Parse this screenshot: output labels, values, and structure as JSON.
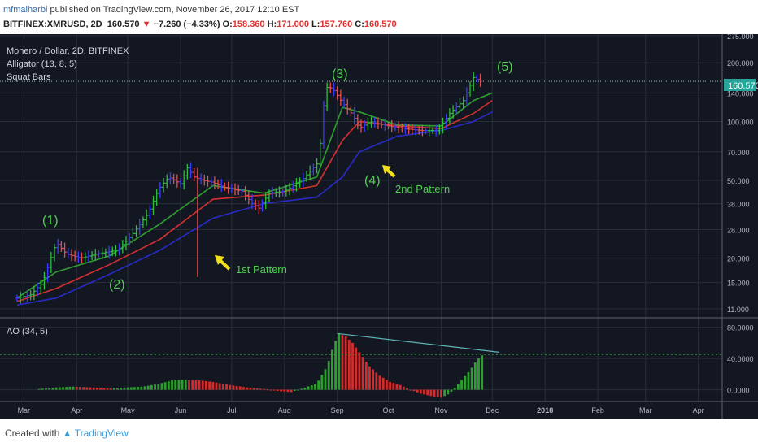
{
  "header": {
    "user": "mfmalharbi",
    "published": " published on TradingView.com, November 26, 2017 12:10 EST",
    "symbol": "BITFINEX:XMRUSD, 2D",
    "last": "160.570",
    "arrow": "▼",
    "change": "−7.260 (−4.33%)",
    "o_label": "O:",
    "o_value": "158.360",
    "h_label": "H:",
    "h_value": "171.000",
    "l_label": "L:",
    "l_value": "157.760",
    "c_label": "C:",
    "c_value": "160.570"
  },
  "legend": {
    "title": "Monero / Dollar, 2D, BITFINEX",
    "alligator": "Alligator (13, 8, 5)",
    "squat": "Squat Bars",
    "ao": "AO (34, 5)"
  },
  "annotations": {
    "w1": "(1)",
    "w2": "(2)",
    "w3": "(3)",
    "w4": "(4)",
    "w5": "(5)",
    "pattern1": "1st Pattern",
    "pattern2": "2nd Pattern"
  },
  "price_tag": "160.570",
  "footer": {
    "created": "Created with",
    "brand": "TradingView"
  },
  "colors": {
    "bg": "#131722",
    "grid": "#2a2e39",
    "up": "#26a69a",
    "down": "#ef5350",
    "jaw": "#2a2ac8",
    "teeth": "#d43030",
    "lips": "#2e9e2e",
    "annotation": "#4cd24c",
    "arrow": "#f3e21a"
  },
  "chart_data": [
    {
      "type": "candlestick",
      "title": "Monero / Dollar, 2D, BITFINEX",
      "y_scale": "log",
      "y_ticks": [
        "275.000",
        "200.000",
        "140.000",
        "100.000",
        "70.000",
        "50.000",
        "38.000",
        "28.000",
        "20.000",
        "15.000",
        "11.000"
      ],
      "x_ticks": [
        "Mar",
        "Apr",
        "May",
        "Jun",
        "Jul",
        "Aug",
        "Sep",
        "Oct",
        "Nov",
        "Dec",
        "2018",
        "Feb",
        "Mar",
        "Apr"
      ],
      "price_points": [
        [
          "2017-02-25",
          12.5
        ],
        [
          "2017-03-05",
          13
        ],
        [
          "2017-03-12",
          15
        ],
        [
          "2017-03-16",
          19
        ],
        [
          "2017-03-20",
          24
        ],
        [
          "2017-03-26",
          21
        ],
        [
          "2017-04-03",
          20
        ],
        [
          "2017-04-13",
          21
        ],
        [
          "2017-04-25",
          22
        ],
        [
          "2017-05-03",
          26
        ],
        [
          "2017-05-13",
          34
        ],
        [
          "2017-05-19",
          45
        ],
        [
          "2017-05-25",
          52
        ],
        [
          "2017-06-01",
          48
        ],
        [
          "2017-06-05",
          58
        ],
        [
          "2017-06-09",
          52
        ],
        [
          "2017-06-14",
          50
        ],
        [
          "2017-06-19",
          49
        ],
        [
          "2017-06-27",
          46
        ],
        [
          "2017-07-07",
          44
        ],
        [
          "2017-07-13",
          38
        ],
        [
          "2017-07-17",
          36
        ],
        [
          "2017-07-23",
          43
        ],
        [
          "2017-08-01",
          44
        ],
        [
          "2017-08-11",
          50
        ],
        [
          "2017-08-21",
          62
        ],
        [
          "2017-08-25",
          150
        ],
        [
          "2017-08-29",
          148
        ],
        [
          "2017-09-04",
          125
        ],
        [
          "2017-09-10",
          108
        ],
        [
          "2017-09-14",
          92
        ],
        [
          "2017-09-20",
          100
        ],
        [
          "2017-09-28",
          96
        ],
        [
          "2017-10-10",
          92
        ],
        [
          "2017-10-20",
          90
        ],
        [
          "2017-10-30",
          90
        ],
        [
          "2017-11-06",
          110
        ],
        [
          "2017-11-14",
          128
        ],
        [
          "2017-11-20",
          168
        ],
        [
          "2017-11-24",
          160.57
        ]
      ],
      "series": [
        {
          "name": "Alligator Jaw",
          "points": [
            [
              "2017-02-25",
              11.5
            ],
            [
              "2017-03-20",
              12.5
            ],
            [
              "2017-04-20",
              16.5
            ],
            [
              "2017-05-20",
              22
            ],
            [
              "2017-06-20",
              32
            ],
            [
              "2017-07-20",
              38
            ],
            [
              "2017-08-20",
              41
            ],
            [
              "2017-09-04",
              52
            ],
            [
              "2017-09-14",
              70
            ],
            [
              "2017-10-06",
              84
            ],
            [
              "2017-11-01",
              90
            ],
            [
              "2017-11-20",
              100
            ],
            [
              "2017-12-01",
              112
            ]
          ]
        },
        {
          "name": "Alligator Teeth",
          "points": [
            [
              "2017-02-25",
              12
            ],
            [
              "2017-03-20",
              14
            ],
            [
              "2017-04-20",
              18.5
            ],
            [
              "2017-05-20",
              25
            ],
            [
              "2017-06-20",
              40
            ],
            [
              "2017-07-20",
              42
            ],
            [
              "2017-08-20",
              47
            ],
            [
              "2017-09-04",
              80
            ],
            [
              "2017-09-14",
              100
            ],
            [
              "2017-10-06",
              95
            ],
            [
              "2017-11-01",
              92
            ],
            [
              "2017-11-20",
              110
            ],
            [
              "2017-12-01",
              128
            ]
          ]
        },
        {
          "name": "Alligator Lips",
          "points": [
            [
              "2017-02-25",
              12.5
            ],
            [
              "2017-03-20",
              17
            ],
            [
              "2017-04-20",
              20.5
            ],
            [
              "2017-05-20",
              30
            ],
            [
              "2017-06-20",
              47
            ],
            [
              "2017-07-20",
              43
            ],
            [
              "2017-08-20",
              52
            ],
            [
              "2017-09-04",
              118
            ],
            [
              "2017-09-14",
              112
            ],
            [
              "2017-10-06",
              96
            ],
            [
              "2017-11-01",
              95
            ],
            [
              "2017-11-20",
              128
            ],
            [
              "2017-12-01",
              140
            ]
          ]
        }
      ],
      "ylim": [
        10,
        280
      ]
    },
    {
      "type": "bar",
      "title": "AO (34, 5)",
      "y_ticks": [
        "80.0000",
        "40.0000",
        "0.0000"
      ],
      "ylim": [
        -15,
        90
      ],
      "points": [
        [
          "2017-03-10",
          1
        ],
        [
          "2017-03-20",
          3
        ],
        [
          "2017-03-30",
          4
        ],
        [
          "2017-04-10",
          3
        ],
        [
          "2017-04-20",
          2
        ],
        [
          "2017-05-01",
          3
        ],
        [
          "2017-05-10",
          4
        ],
        [
          "2017-05-20",
          8
        ],
        [
          "2017-05-27",
          12
        ],
        [
          "2017-06-03",
          13
        ],
        [
          "2017-06-12",
          12
        ],
        [
          "2017-06-20",
          10
        ],
        [
          "2017-06-30",
          6
        ],
        [
          "2017-07-10",
          3
        ],
        [
          "2017-07-20",
          1
        ],
        [
          "2017-07-30",
          -2
        ],
        [
          "2017-08-05",
          -3
        ],
        [
          "2017-08-12",
          2
        ],
        [
          "2017-08-20",
          8
        ],
        [
          "2017-08-26",
          30
        ],
        [
          "2017-08-30",
          58
        ],
        [
          "2017-09-02",
          72
        ],
        [
          "2017-09-06",
          68
        ],
        [
          "2017-09-10",
          60
        ],
        [
          "2017-09-14",
          48
        ],
        [
          "2017-09-20",
          30
        ],
        [
          "2017-09-26",
          18
        ],
        [
          "2017-10-02",
          10
        ],
        [
          "2017-10-08",
          6
        ],
        [
          "2017-10-14",
          0
        ],
        [
          "2017-10-20",
          -5
        ],
        [
          "2017-10-26",
          -8
        ],
        [
          "2017-11-01",
          -10
        ],
        [
          "2017-11-06",
          -5
        ],
        [
          "2017-11-10",
          5
        ],
        [
          "2017-11-14",
          15
        ],
        [
          "2017-11-18",
          25
        ],
        [
          "2017-11-22",
          38
        ],
        [
          "2017-11-26",
          46
        ]
      ],
      "trendline": [
        [
          "2017-09-01",
          72
        ],
        [
          "2017-12-05",
          48
        ]
      ],
      "reference_level": 45
    }
  ]
}
